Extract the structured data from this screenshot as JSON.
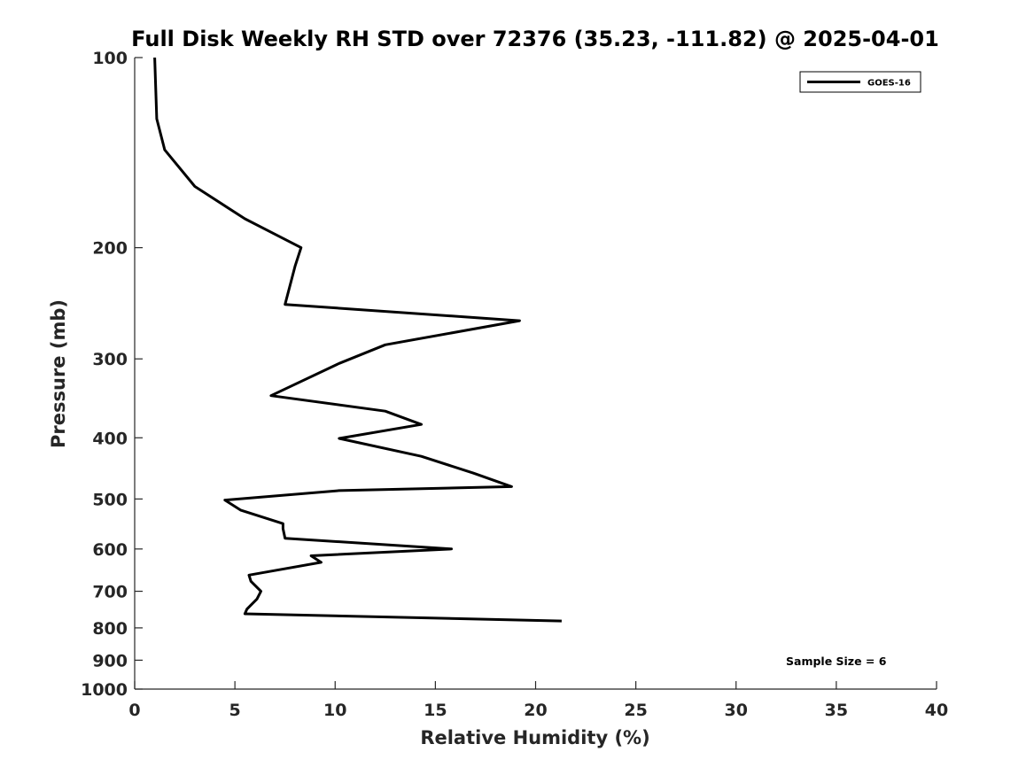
{
  "chart_data": {
    "type": "line",
    "title": "Full Disk Weekly RH STD over 72376 (35.23, -111.82) @ 2025-04-01",
    "xlabel": "Relative Humidity (%)",
    "ylabel": "Pressure (mb)",
    "xlim": [
      0,
      40
    ],
    "ylim": [
      100,
      1000
    ],
    "y_scale": "log",
    "y_reversed": true,
    "x_ticks": [
      0,
      5,
      10,
      15,
      20,
      25,
      30,
      35,
      40
    ],
    "x_tick_labels": [
      "0",
      "5",
      "10",
      "15",
      "20",
      "25",
      "30",
      "35",
      "40"
    ],
    "y_ticks": [
      100,
      200,
      300,
      400,
      500,
      600,
      700,
      800,
      900,
      1000
    ],
    "y_tick_labels": [
      "100",
      "200",
      "300",
      "400",
      "500",
      "600",
      "700",
      "800",
      "900",
      "1000"
    ],
    "grid": false,
    "legend_position": "top-right",
    "series": [
      {
        "name": "GOES-16",
        "color": "#000000",
        "x": [
          1.0,
          1.1,
          1.5,
          3.0,
          5.5,
          8.3,
          8.0,
          7.5,
          19.2,
          12.5,
          10.2,
          6.8,
          12.5,
          14.3,
          10.2,
          14.3,
          16.9,
          18.8,
          10.2,
          4.5,
          5.3,
          7.4,
          7.4,
          7.5,
          15.8,
          8.8,
          9.3,
          5.7,
          5.8,
          6.3,
          6.1,
          5.6,
          5.5,
          21.3
        ],
        "y": [
          100,
          125,
          140,
          160,
          180,
          200,
          214,
          246,
          261,
          285,
          305,
          343,
          363,
          381,
          401,
          428,
          455,
          478,
          485,
          502,
          521,
          547,
          557,
          577,
          600,
          615,
          630,
          660,
          675,
          700,
          720,
          747,
          760,
          780
        ]
      }
    ],
    "annotations": [
      "Sample Size = 6"
    ]
  }
}
